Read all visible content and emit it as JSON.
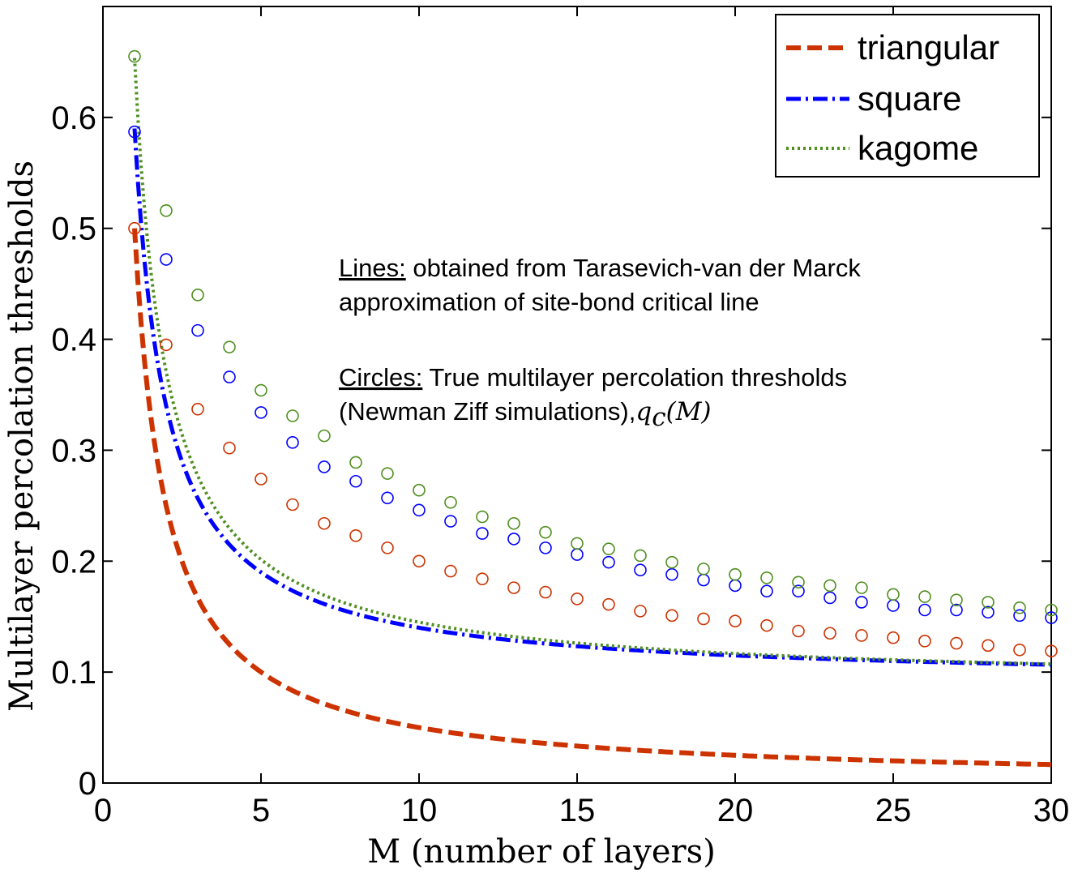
{
  "chart_data": {
    "type": "line",
    "title": "",
    "xlabel": "M (number of layers)",
    "ylabel": "Multilayer percolation thresholds",
    "xlim": [
      0,
      30
    ],
    "ylim": [
      0,
      0.7
    ],
    "xticks": [
      0,
      5,
      10,
      15,
      20,
      25,
      30
    ],
    "yticks": [
      0,
      0.1,
      0.2,
      0.3,
      0.4,
      0.5,
      0.6
    ],
    "ytick_labels": [
      "0",
      "0.1",
      "0.2",
      "0.3",
      "0.4",
      "0.5",
      "0.6"
    ],
    "grid": false,
    "legend_position": "top-right",
    "annotation": {
      "lines_heading": "Lines:",
      "lines_text_1": " obtained from Tarasevich-van der Marck",
      "lines_text_2": "approximation of site-bond critical line",
      "circles_heading": "Circles:",
      "circles_text_1": " True multilayer percolation thresholds",
      "circles_text_2": "(Newman Ziff simulations),",
      "circles_math": "q",
      "circles_math_sub": "c",
      "circles_math_arg": "(M)"
    },
    "series": [
      {
        "name": "triangular",
        "color": "#cc3300",
        "line_style": "dashed",
        "line": {
          "c0": 0.0,
          "c1": 0.5
        },
        "marker_x": [
          1,
          2,
          3,
          4,
          5,
          6,
          7,
          8,
          9,
          10,
          11,
          12,
          13,
          14,
          15,
          16,
          17,
          18,
          19,
          20,
          21,
          22,
          23,
          24,
          25,
          26,
          27,
          28,
          29,
          30
        ],
        "marker_y": [
          0.5,
          0.395,
          0.337,
          0.302,
          0.274,
          0.251,
          0.234,
          0.223,
          0.212,
          0.2,
          0.191,
          0.184,
          0.176,
          0.172,
          0.166,
          0.161,
          0.155,
          0.151,
          0.148,
          0.146,
          0.142,
          0.137,
          0.135,
          0.133,
          0.131,
          0.128,
          0.126,
          0.124,
          0.12,
          0.119
        ]
      },
      {
        "name": "square",
        "color": "#0000ff",
        "line_style": "dashdot",
        "line": {
          "c0": 0.09,
          "c1": 0.5
        },
        "marker_x": [
          1,
          2,
          3,
          4,
          5,
          6,
          7,
          8,
          9,
          10,
          11,
          12,
          13,
          14,
          15,
          16,
          17,
          18,
          19,
          20,
          21,
          22,
          23,
          24,
          25,
          26,
          27,
          28,
          29,
          30
        ],
        "marker_y": [
          0.587,
          0.472,
          0.408,
          0.366,
          0.334,
          0.307,
          0.285,
          0.272,
          0.257,
          0.246,
          0.236,
          0.225,
          0.22,
          0.212,
          0.206,
          0.199,
          0.192,
          0.188,
          0.183,
          0.178,
          0.173,
          0.173,
          0.167,
          0.163,
          0.16,
          0.156,
          0.156,
          0.154,
          0.151,
          0.149
        ]
      },
      {
        "name": "kagome",
        "color": "#4f8f1f",
        "line_style": "dotted",
        "line": {
          "c0": 0.0885,
          "c1": 0.565
        },
        "marker_x": [
          1,
          2,
          3,
          4,
          5,
          6,
          7,
          8,
          9,
          10,
          11,
          12,
          13,
          14,
          15,
          16,
          17,
          18,
          19,
          20,
          21,
          22,
          23,
          24,
          25,
          26,
          27,
          28,
          29,
          30
        ],
        "marker_y": [
          0.655,
          0.516,
          0.44,
          0.393,
          0.354,
          0.331,
          0.313,
          0.289,
          0.279,
          0.264,
          0.253,
          0.24,
          0.234,
          0.226,
          0.216,
          0.211,
          0.205,
          0.199,
          0.193,
          0.188,
          0.185,
          0.181,
          0.178,
          0.176,
          0.17,
          0.168,
          0.165,
          0.163,
          0.158,
          0.156
        ]
      }
    ]
  }
}
